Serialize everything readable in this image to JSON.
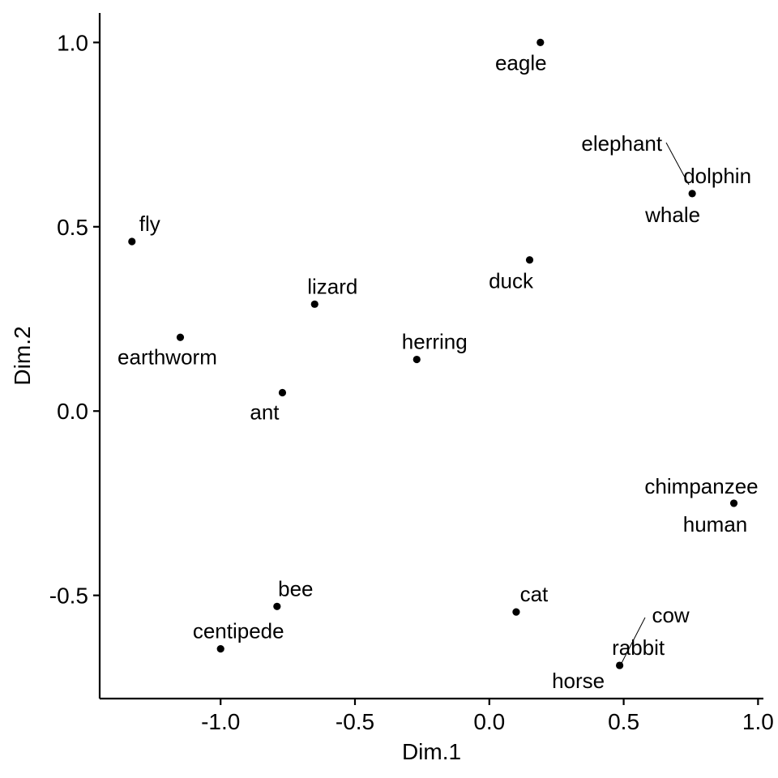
{
  "chart_data": {
    "type": "scatter",
    "xlabel": "Dim.1",
    "ylabel": "Dim.2",
    "xlim": [
      -1.45,
      1.02
    ],
    "ylim": [
      -0.78,
      1.08
    ],
    "x_ticks": [
      -1.0,
      -0.5,
      0.0,
      0.5,
      1.0
    ],
    "x_tick_labels": [
      "-1.0",
      "-0.5",
      "0.0",
      "0.5",
      "1.0"
    ],
    "y_ticks": [
      -0.5,
      0.0,
      0.5,
      1.0
    ],
    "y_tick_labels": [
      "-0.5",
      "0.0",
      "0.5",
      "1.0"
    ],
    "grid": false,
    "point_color": "#000000",
    "points": [
      {
        "label": "eagle",
        "x": 0.19,
        "y": 1.0
      },
      {
        "label": "elephant",
        "x": 0.755,
        "y": 0.59
      },
      {
        "label": "dolphin",
        "x": 0.755,
        "y": 0.59
      },
      {
        "label": "whale",
        "x": 0.755,
        "y": 0.59
      },
      {
        "label": "fly",
        "x": -1.33,
        "y": 0.46
      },
      {
        "label": "duck",
        "x": 0.15,
        "y": 0.41
      },
      {
        "label": "lizard",
        "x": -0.65,
        "y": 0.29
      },
      {
        "label": "earthworm",
        "x": -1.15,
        "y": 0.2
      },
      {
        "label": "herring",
        "x": -0.27,
        "y": 0.14
      },
      {
        "label": "ant",
        "x": -0.77,
        "y": 0.05
      },
      {
        "label": "chimpanzee",
        "x": 0.91,
        "y": -0.25
      },
      {
        "label": "human",
        "x": 0.91,
        "y": -0.25
      },
      {
        "label": "bee",
        "x": -0.79,
        "y": -0.53
      },
      {
        "label": "cat",
        "x": 0.1,
        "y": -0.545
      },
      {
        "label": "centipede",
        "x": -1.0,
        "y": -0.645
      },
      {
        "label": "cow",
        "x": 0.485,
        "y": -0.69
      },
      {
        "label": "rabbit",
        "x": 0.485,
        "y": -0.69
      },
      {
        "label": "horse",
        "x": 0.485,
        "y": -0.69
      }
    ]
  }
}
